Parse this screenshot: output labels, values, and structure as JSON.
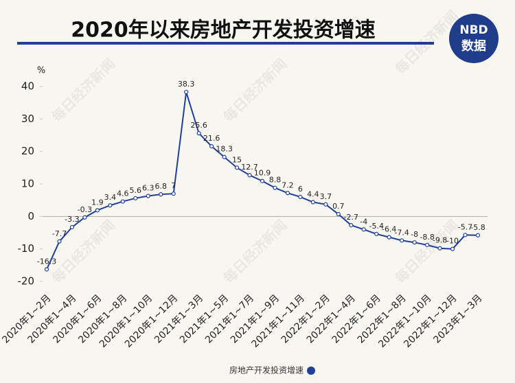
{
  "chart_data": {
    "type": "line",
    "title": "2020年以来房地产开发投资增速",
    "logo": {
      "top": "NBD",
      "bottom": "数据"
    },
    "watermark": "每日经济新闻",
    "y_unit": "%",
    "categories": [
      "2020年1~2月",
      null,
      "2020年1~4月",
      null,
      "2020年1~6月",
      null,
      "2020年1~8月",
      null,
      "2020年1~10月",
      null,
      "2020年1~12月",
      null,
      "2021年1~3月",
      null,
      "2021年1~5月",
      null,
      "2021年1~7月",
      null,
      "2021年1~9月",
      null,
      "2021年1~11月",
      null,
      "2022年1~2月",
      null,
      "2022年1~4月",
      null,
      "2022年1~6月",
      null,
      "2022年1~8月",
      null,
      "2022年1~10月",
      null,
      "2022年1~12月",
      null,
      "2023年1~3月"
    ],
    "series": [
      {
        "name": "房地产开发投资增速",
        "color": "#1f3f99",
        "values": [
          -16.3,
          -7.7,
          -3.3,
          -0.3,
          1.9,
          3.4,
          4.6,
          5.6,
          6.3,
          6.8,
          7,
          38.3,
          25.6,
          21.6,
          18.3,
          15,
          12.7,
          10.9,
          8.8,
          7.2,
          6,
          4.4,
          3.7,
          0.7,
          -2.7,
          -4,
          -5.4,
          -6.4,
          -7.4,
          -8,
          -8.8,
          -9.8,
          -10,
          -5.7,
          -5.8
        ]
      }
    ],
    "ylim": [
      -20,
      40
    ],
    "yticks": [
      -20,
      -10,
      0,
      10,
      20,
      30,
      40
    ],
    "grid": false,
    "legend": "bottom"
  }
}
